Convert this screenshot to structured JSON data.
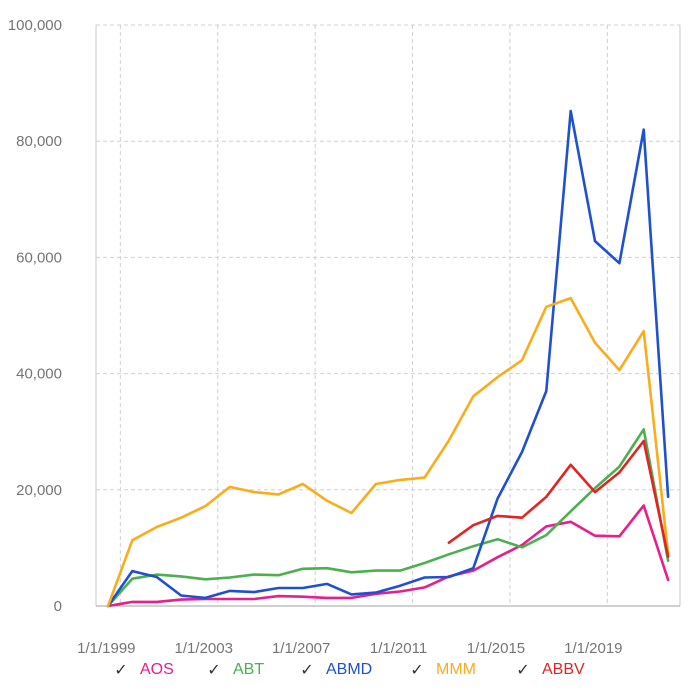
{
  "chart_data": {
    "type": "line",
    "x": [
      "1998",
      "1999",
      "2000",
      "2001",
      "2002",
      "2003",
      "2004",
      "2005",
      "2006",
      "2007",
      "2008",
      "2009",
      "2010",
      "2011",
      "2012",
      "2013",
      "2014",
      "2015",
      "2016",
      "2017",
      "2018",
      "2019",
      "2020",
      "2021",
      "2022"
    ],
    "x_tick_labels": [
      "1/1/1999",
      "1/1/2003",
      "1/1/2007",
      "1/1/2011",
      "1/1/2015",
      "1/1/2019"
    ],
    "y_tick_labels": [
      "0",
      "20,000",
      "40,000",
      "60,000",
      "80,000",
      "100,000"
    ],
    "ylim": [
      0,
      100000
    ],
    "grid": true,
    "legend_position": "bottom",
    "series": [
      {
        "name": "AOS",
        "color": "#e91e8c",
        "values": [
          0,
          700,
          700,
          1100,
          1200,
          1200,
          1200,
          1700,
          1600,
          1400,
          1400,
          2100,
          2500,
          3200,
          5100,
          6100,
          8400,
          10500,
          13700,
          14500,
          12100,
          12000,
          17300,
          4500,
          null
        ]
      },
      {
        "name": "ABT",
        "color": "#4caf50",
        "values": [
          0,
          4700,
          5400,
          5100,
          4600,
          4900,
          5400,
          5300,
          6400,
          6500,
          5800,
          6100,
          6100,
          7400,
          8900,
          10300,
          11500,
          10100,
          12200,
          16300,
          20300,
          24000,
          30400,
          7800,
          null
        ]
      },
      {
        "name": "ABMD",
        "color": "#1e50d2",
        "values": [
          0,
          6000,
          5000,
          1800,
          1400,
          2600,
          2400,
          3100,
          3100,
          3800,
          2000,
          2300,
          3500,
          4900,
          5000,
          6500,
          18500,
          26500,
          37000,
          85200,
          62800,
          59000,
          82000,
          18800,
          null
        ]
      },
      {
        "name": "MMM",
        "color": "#fbac1a",
        "values": [
          0,
          11300,
          13600,
          15200,
          17200,
          20500,
          19600,
          19200,
          21000,
          18100,
          16000,
          21000,
          21700,
          22100,
          28500,
          36100,
          39400,
          42300,
          51500,
          53000,
          45300,
          40600,
          47300,
          9000,
          null
        ]
      },
      {
        "name": "ABBV",
        "color": "#e22424",
        "values": [
          null,
          null,
          null,
          null,
          null,
          null,
          null,
          null,
          null,
          null,
          null,
          null,
          null,
          null,
          10900,
          13900,
          15500,
          15200,
          18800,
          24300,
          19600,
          23000,
          28400,
          8500,
          null
        ]
      }
    ]
  }
}
